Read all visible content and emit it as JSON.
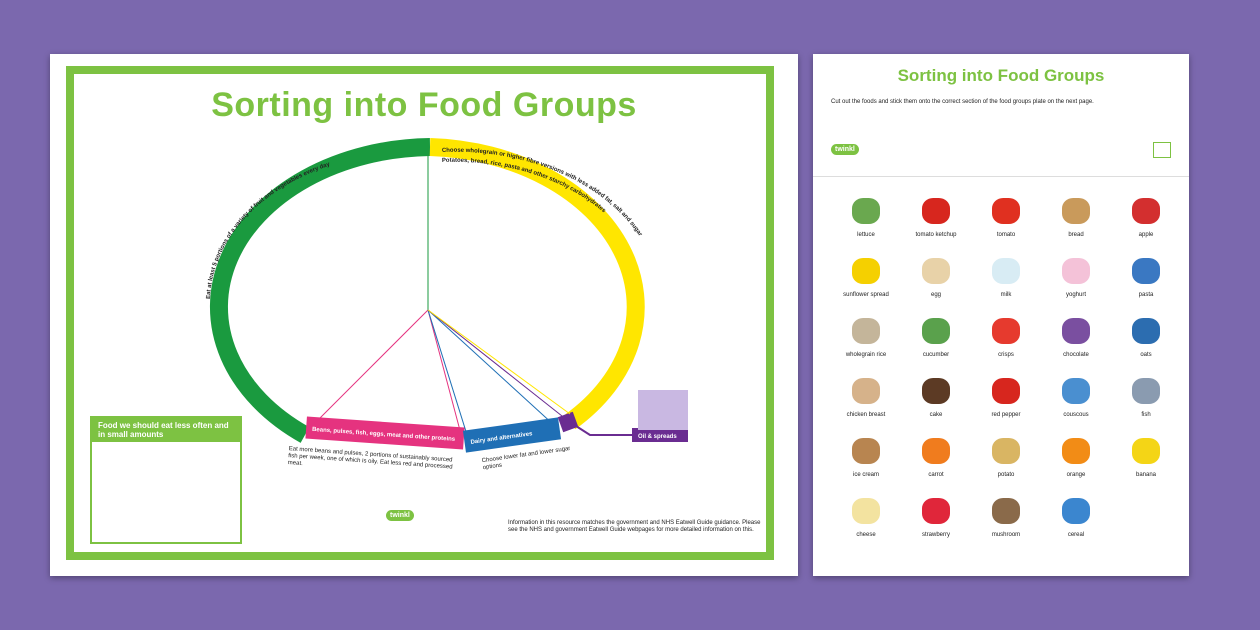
{
  "left_sheet": {
    "title": "Sorting into Food Groups",
    "sections": {
      "green": "Eat at least 5 portions of a variety of fruit and vegetables every day",
      "yellow": "Choose wholegrain or higher fibre versions with less added fat, salt and sugar",
      "yellow2": "Potatoes, bread, rice, pasta and other starchy carbohydrates",
      "pink": "Beans, pulses, fish, eggs, meat and other proteins",
      "pink_desc": "Eat more beans and pulses, 2 portions of sustainably sourced fish per week, one of which is oily. Eat less red and processed meat.",
      "blue": "Dairy and alternatives",
      "blue_desc": "Choose lower fat and lower sugar options",
      "purple": "Oil & spreads"
    },
    "less_box_title": "Food we should eat less often and in small amounts",
    "info": "Information in this resource matches the government and NHS Eatwell Guide guidance. Please see the NHS and government Eatwell Guide webpages for more detailed information on this.",
    "logo": "twinkl",
    "colors": {
      "green": "#1a9a3f",
      "yellow": "#ffe600",
      "pink": "#e5337f",
      "blue": "#1f6fb5",
      "purple": "#6a2c91",
      "frame": "#7dc242"
    }
  },
  "right_sheet": {
    "title": "Sorting into Food Groups",
    "instructions": "Cut out the foods and stick them onto the correct section of the food groups plate on the next page.",
    "logo": "twinkl",
    "foods": [
      {
        "label": "lettuce",
        "icon": "lettuce-icon",
        "color": "#6aa84f"
      },
      {
        "label": "tomato ketchup",
        "icon": "ketchup-icon",
        "color": "#d7261e"
      },
      {
        "label": "tomato",
        "icon": "tomato-icon",
        "color": "#e03020"
      },
      {
        "label": "bread",
        "icon": "bread-icon",
        "color": "#c99a5b"
      },
      {
        "label": "apple",
        "icon": "apple-icon",
        "color": "#d32f2f"
      },
      {
        "label": "sunflower spread",
        "icon": "spread-icon",
        "color": "#f5d000"
      },
      {
        "label": "egg",
        "icon": "egg-icon",
        "color": "#e8d2a8"
      },
      {
        "label": "milk",
        "icon": "milk-icon",
        "color": "#d8ecf4"
      },
      {
        "label": "yoghurt",
        "icon": "yoghurt-icon",
        "color": "#f4c2d8"
      },
      {
        "label": "pasta",
        "icon": "pasta-icon",
        "color": "#3a78c2"
      },
      {
        "label": "wholegrain rice",
        "icon": "rice-icon",
        "color": "#c4b59a"
      },
      {
        "label": "cucumber",
        "icon": "cucumber-icon",
        "color": "#5aa14c"
      },
      {
        "label": "crisps",
        "icon": "crisps-icon",
        "color": "#e63a2e"
      },
      {
        "label": "chocolate",
        "icon": "chocolate-icon",
        "color": "#7a4fa0"
      },
      {
        "label": "oats",
        "icon": "oats-icon",
        "color": "#2c6db0"
      },
      {
        "label": "chicken breast",
        "icon": "chicken-icon",
        "color": "#d6b28a"
      },
      {
        "label": "cake",
        "icon": "cake-icon",
        "color": "#5c3a24"
      },
      {
        "label": "red pepper",
        "icon": "pepper-icon",
        "color": "#d7261e"
      },
      {
        "label": "couscous",
        "icon": "couscous-icon",
        "color": "#4a8fd0"
      },
      {
        "label": "fish",
        "icon": "fish-icon",
        "color": "#8a9bb0"
      },
      {
        "label": "ice cream",
        "icon": "ice-cream-icon",
        "color": "#b88550"
      },
      {
        "label": "carrot",
        "icon": "carrot-icon",
        "color": "#f07c1e"
      },
      {
        "label": "potato",
        "icon": "potato-icon",
        "color": "#d9b563"
      },
      {
        "label": "orange",
        "icon": "orange-icon",
        "color": "#f28c16"
      },
      {
        "label": "banana",
        "icon": "banana-icon",
        "color": "#f4d516"
      },
      {
        "label": "cheese",
        "icon": "cheese-icon",
        "color": "#f3e3a0"
      },
      {
        "label": "strawberry",
        "icon": "strawberry-icon",
        "color": "#e0263a"
      },
      {
        "label": "mushroom",
        "icon": "mushroom-icon",
        "color": "#8a6a4a"
      },
      {
        "label": "cereal",
        "icon": "cereal-icon",
        "color": "#3b86cf"
      }
    ]
  }
}
